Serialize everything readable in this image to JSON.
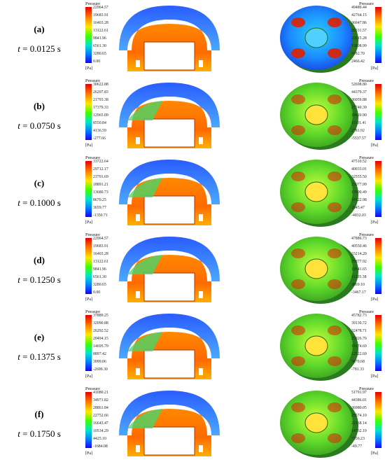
{
  "rows": [
    {
      "letter": "(a)",
      "time_prefix": "t",
      "time_rest": " = 0.0125 s",
      "left_scale": {
        "title": "Pressure",
        "ticks": [
          "22964.57",
          "19683.91",
          "16403.28",
          "13122.61",
          "9841.96",
          "6561.30",
          "3280.65",
          "0.00"
        ],
        "unit": "[Pa]"
      },
      "right_scale": {
        "title": "Pressure",
        "ticks": [
          "49480.44",
          "42764.15",
          "36047.86",
          "29331.57",
          "22615.28",
          "15898.99",
          "9182.70",
          "2466.42"
        ],
        "unit": "[Pa]"
      }
    },
    {
      "letter": "(b)",
      "time_prefix": "t",
      "time_rest": " = 0.0750 s",
      "left_scale": {
        "title": "Pressure",
        "ticks": [
          "30622.88",
          "26207.83",
          "21793.38",
          "17379.33",
          "12965.09",
          "8550.84",
          "4136.59",
          "-277.66"
        ],
        "unit": "[Pa]"
      },
      "right_scale": {
        "title": "Pressure",
        "ticks": [
          "52698.80",
          "44379.37",
          "36059.88",
          "27740.39",
          "19420.90",
          "11101.41",
          "2781.92",
          "-5537.57"
        ],
        "unit": "[Pa]"
      }
    },
    {
      "letter": "(c)",
      "time_prefix": "t",
      "time_rest": " = 0.1000 s",
      "left_scale": {
        "title": "Pressure",
        "ticks": [
          "33722.64",
          "29712.17",
          "23701.69",
          "18891.21",
          "13680.73",
          "8670.25",
          "3659.77",
          "-1350.71"
        ],
        "unit": "[Pa]"
      },
      "right_scale": {
        "title": "Pressure",
        "ticks": [
          "47510.52",
          "40033.01",
          "32555.50",
          "25077.99",
          "17600.49",
          "10122.98",
          "2645.47",
          "-4832.03"
        ],
        "unit": "[Pa]"
      }
    },
    {
      "letter": "(d)",
      "time_prefix": "t",
      "time_rest": " = 0.1250 s",
      "left_scale": {
        "title": "Pressure",
        "ticks": [
          "22964.57",
          "19683.91",
          "16403.28",
          "13122.61",
          "9841.96",
          "6561.30",
          "3280.65",
          "0.00"
        ],
        "unit": "[Pa]"
      },
      "right_scale": {
        "title": "Pressure",
        "ticks": [
          "47886.73",
          "40550.46",
          "33214.20",
          "25877.92",
          "18541.65",
          "11205.38",
          "3869.10",
          "-3467.17"
        ],
        "unit": "[Pa]"
      }
    },
    {
      "letter": "(e)",
      "time_prefix": "t",
      "time_rest": " = 0.1375 s",
      "left_scale": {
        "title": "Pressure",
        "ticks": [
          "37889.25",
          "32090.88",
          "26292.52",
          "20494.15",
          "14695.79",
          "8897.42",
          "3099.06",
          "-2699.30"
        ],
        "unit": "[Pa]"
      },
      "right_scale": {
        "title": "Pressure",
        "ticks": [
          "45782.73",
          "39130.72",
          "32478.71",
          "25826.70",
          "19174.69",
          "12522.69",
          "5870.68",
          "-781.33"
        ],
        "unit": "[Pa]"
      }
    },
    {
      "letter": "(f)",
      "time_prefix": "t",
      "time_rest": " = 0.1750 s",
      "left_scale": {
        "title": "Pressure",
        "ticks": [
          "41080.21",
          "34971.82",
          "28861.84",
          "22752.66",
          "16643.47",
          "10534.29",
          "4425.10",
          "-1684.08"
        ],
        "unit": "[Pa]"
      },
      "right_scale": {
        "title": "Pressure",
        "ticks": [
          "51791.97",
          "44386.01",
          "36980.05",
          "29574.10",
          "22168.14",
          "14762.19",
          "7356.23",
          "-49.77"
        ],
        "unit": "[Pa]"
      }
    }
  ],
  "colors": {
    "red": "#e60000",
    "orange": "#ff8a00",
    "yellow": "#ffe600",
    "green": "#3cff00",
    "cyan": "#00d7e6",
    "blue": "#1f5bff",
    "deepblue": "#1a00ff"
  }
}
